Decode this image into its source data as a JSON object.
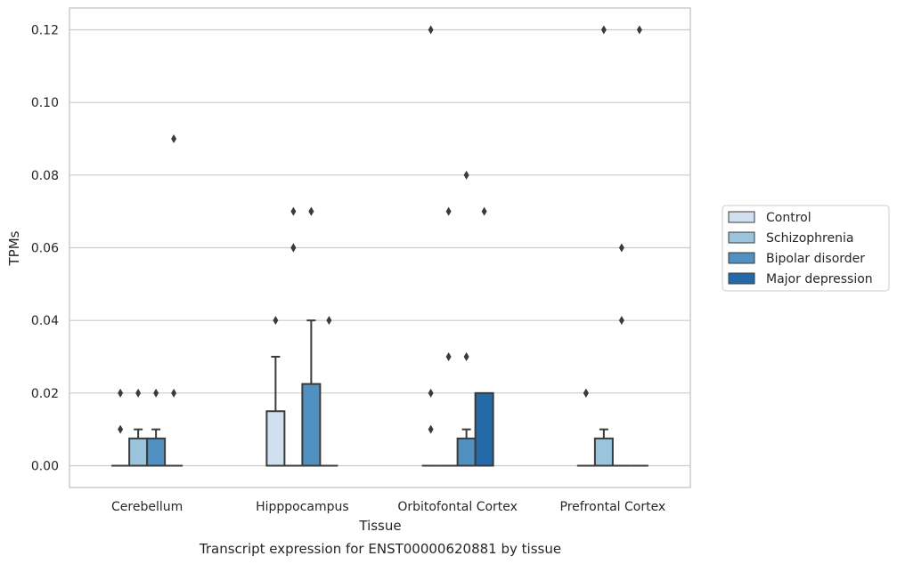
{
  "chart_data": {
    "type": "boxplot",
    "caption": "Transcript expression for ENST00000620881 by tissue",
    "xlabel": "Tissue",
    "ylabel": "TPMs",
    "ylim": [
      -0.006,
      0.126
    ],
    "yticks": [
      0.0,
      0.02,
      0.04,
      0.06,
      0.08,
      0.1,
      0.12
    ],
    "ytick_labels": [
      "0.00",
      "0.02",
      "0.04",
      "0.06",
      "0.08",
      "0.10",
      "0.12"
    ],
    "grid": true,
    "legend_position": "right",
    "categories": [
      "Cerebellum",
      "Hipppocampus",
      "Orbitofontal Cortex",
      "Prefrontal Cortex"
    ],
    "series": [
      {
        "name": "Control",
        "color": "#d1e0f0",
        "boxes": [
          {
            "q1": 0,
            "median": 0,
            "q3": 0,
            "whisker_high": 0,
            "outliers": [
              0.02,
              0.01
            ]
          },
          {
            "q1": 0,
            "median": 0,
            "q3": 0.015,
            "whisker_high": 0.03,
            "outliers": [
              0.04
            ]
          },
          {
            "q1": 0,
            "median": 0,
            "q3": 0,
            "whisker_high": 0,
            "outliers": [
              0.12,
              0.02,
              0.01
            ]
          },
          {
            "q1": 0,
            "median": 0,
            "q3": 0,
            "whisker_high": 0,
            "outliers": [
              0.02,
              0.02
            ]
          }
        ]
      },
      {
        "name": "Schizophrenia",
        "color": "#9ac3dc",
        "boxes": [
          {
            "q1": 0,
            "median": 0,
            "q3": 0.0075,
            "whisker_high": 0.01,
            "outliers": [
              0.02
            ]
          },
          {
            "q1": 0,
            "median": 0,
            "q3": 0,
            "whisker_high": 0,
            "outliers": [
              0.07,
              0.06,
              0.06
            ]
          },
          {
            "q1": 0,
            "median": 0,
            "q3": 0,
            "whisker_high": 0,
            "outliers": [
              0.07,
              0.03
            ]
          },
          {
            "q1": 0,
            "median": 0,
            "q3": 0.0075,
            "whisker_high": 0.01,
            "outliers": [
              0.12
            ]
          }
        ]
      },
      {
        "name": "Bipolar disorder",
        "color": "#5191c1",
        "boxes": [
          {
            "q1": 0,
            "median": 0,
            "q3": 0.0075,
            "whisker_high": 0.01,
            "outliers": [
              0.02
            ]
          },
          {
            "q1": 0,
            "median": 0,
            "q3": 0.0225,
            "whisker_high": 0.04,
            "outliers": [
              0.07,
              0.07
            ]
          },
          {
            "q1": 0,
            "median": 0,
            "q3": 0.0075,
            "whisker_high": 0.01,
            "outliers": [
              0.08,
              0.03
            ]
          },
          {
            "q1": 0,
            "median": 0,
            "q3": 0,
            "whisker_high": 0,
            "outliers": [
              0.06,
              0.04
            ]
          }
        ]
      },
      {
        "name": "Major depression",
        "color": "#2469a8",
        "boxes": [
          {
            "q1": 0,
            "median": 0,
            "q3": 0,
            "whisker_high": 0,
            "outliers": [
              0.09,
              0.02
            ]
          },
          {
            "q1": 0,
            "median": 0,
            "q3": 0,
            "whisker_high": 0,
            "outliers": [
              0.04
            ]
          },
          {
            "q1": 0,
            "median": 0,
            "q3": 0.02,
            "whisker_high": 0.02,
            "outliers": [
              0.07
            ]
          },
          {
            "q1": 0,
            "median": 0,
            "q3": 0,
            "whisker_high": 0,
            "outliers": [
              0.12
            ]
          }
        ]
      }
    ]
  }
}
